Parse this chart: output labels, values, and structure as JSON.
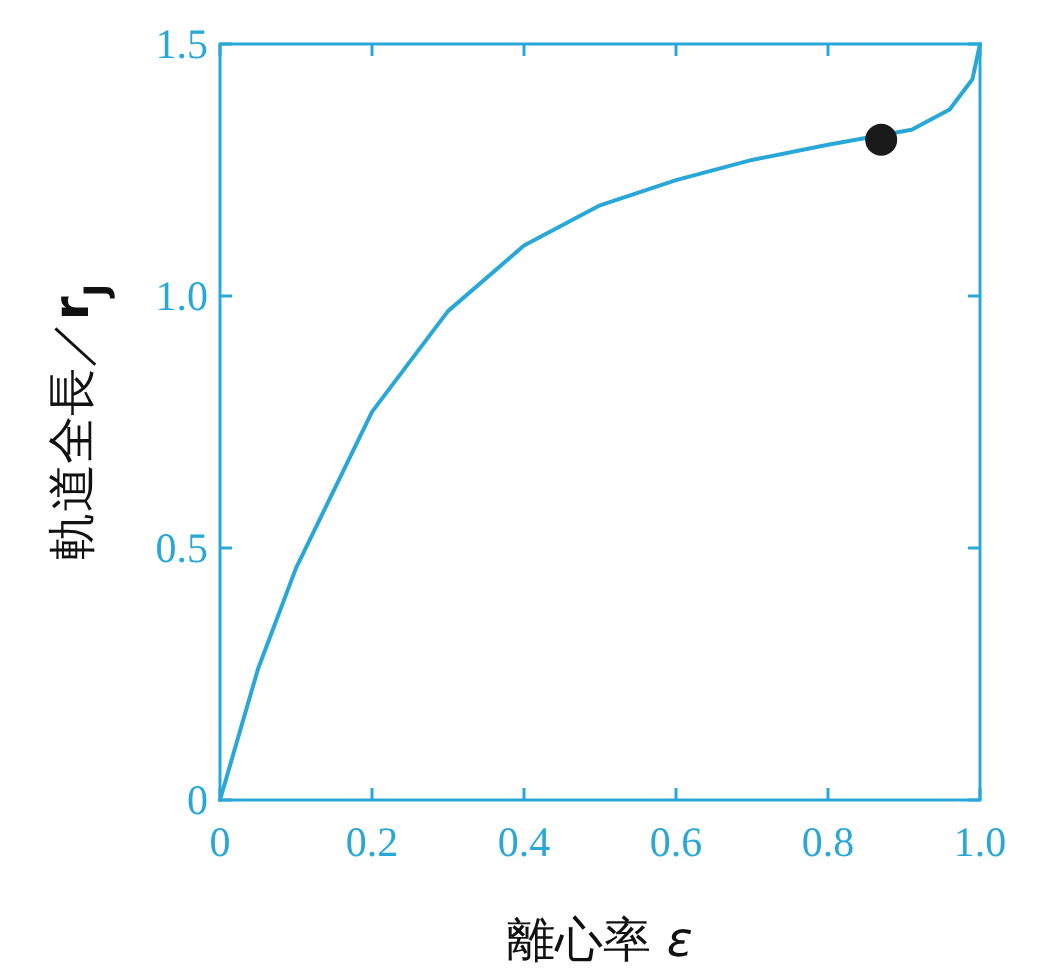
{
  "chart_data": {
    "type": "line",
    "xlabel": "離心率 *ε*",
    "ylabel": "軌道全長／**r**$_{J}$",
    "xlim": [
      0,
      1
    ],
    "ylim": [
      0,
      1.5
    ],
    "xticks": [
      0,
      0.2,
      0.4,
      0.6,
      0.8,
      {
        "value": 1,
        "label": "1.0"
      }
    ],
    "yticks": [
      0,
      0.5,
      {
        "value": 1,
        "label": "1.0"
      },
      1.5
    ],
    "series": [
      {
        "color": "#29a8d8",
        "marker": "none",
        "x": [
          0,
          0.05,
          0.1,
          0.2,
          0.3,
          0.4,
          0.5,
          0.6,
          0.7,
          0.8,
          0.91,
          0.96,
          0.99,
          1.0
        ],
        "values": [
          0,
          0.26,
          0.46,
          0.77,
          0.97,
          1.1,
          1.18,
          1.23,
          1.27,
          1.3,
          1.33,
          1.37,
          1.43,
          1.5
        ]
      },
      {
        "type": "scatter",
        "color": "#1a1a1a",
        "marker": "circle",
        "x": [
          0.87
        ],
        "values": [
          1.31
        ]
      }
    ]
  }
}
